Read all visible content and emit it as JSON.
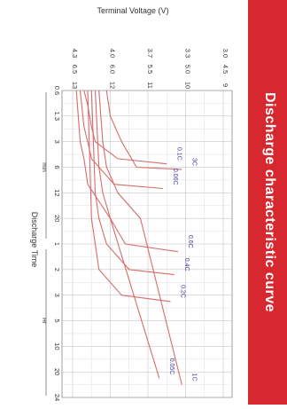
{
  "banner": {
    "title": "Discharge characteristic curve",
    "color": "#d8282f",
    "text_color": "#ffffff"
  },
  "chart_data": {
    "type": "line",
    "orientation": "rotated-90-clockwise",
    "xlabel": "Discharge Time",
    "ylabel": "Terminal Voltage (V)",
    "x_unit_groups": [
      "min",
      "Hr"
    ],
    "x_ticks": [
      "0.6",
      "1.3",
      "3",
      "6",
      "12",
      "20",
      "1",
      "2",
      "3",
      "5",
      "10",
      "20",
      "24"
    ],
    "y_scales": [
      [
        "9",
        "10",
        "11",
        "12",
        "13"
      ],
      [
        "4.5",
        "5.0",
        "5.5",
        "6.0",
        "6.5"
      ],
      [
        "3.0",
        "3.3",
        "3.7",
        "4.0",
        "4.3"
      ]
    ],
    "ylim": [
      9,
      13
    ],
    "grid": true,
    "curve_color": "#d76b6b",
    "label_color": "#3d3d9e",
    "series": [
      {
        "name": "3C",
        "x": [
          0.6,
          1.3,
          3,
          6,
          6.5
        ],
        "y": [
          12.1,
          12.0,
          11.7,
          11.3,
          10.1
        ]
      },
      {
        "name": "1C",
        "x": [
          0.6,
          3,
          6,
          12,
          20,
          22
        ],
        "y": [
          12.3,
          12.2,
          12.1,
          11.8,
          11.2,
          10.1
        ]
      },
      {
        "name": "0.6C",
        "x": [
          0.6,
          6,
          12,
          20,
          1,
          1.3
        ],
        "y": [
          12.4,
          12.3,
          12.2,
          12.0,
          11.6,
          10.2
        ]
      },
      {
        "name": "0.4C",
        "x": [
          0.6,
          12,
          20,
          1,
          2,
          2.2
        ],
        "y": [
          12.5,
          12.4,
          12.3,
          12.1,
          11.5,
          10.3
        ]
      },
      {
        "name": "0.2C",
        "x": [
          0.6,
          20,
          1,
          2,
          3,
          3.5
        ],
        "y": [
          12.6,
          12.5,
          12.4,
          12.3,
          11.7,
          10.4
        ]
      },
      {
        "name": "0.1C",
        "x": [
          0.6,
          1,
          2,
          3,
          5,
          5.6
        ],
        "y": [
          12.7,
          12.6,
          12.5,
          12.4,
          11.8,
          10.5
        ]
      },
      {
        "name": "0.06C",
        "x": [
          0.6,
          2,
          3,
          5,
          10,
          11
        ],
        "y": [
          12.8,
          12.7,
          12.6,
          12.5,
          11.9,
          10.6
        ]
      },
      {
        "name": "0.05C",
        "x": [
          0.6,
          3,
          5,
          10,
          20,
          21
        ],
        "y": [
          12.9,
          12.8,
          12.7,
          12.6,
          12.0,
          10.7
        ]
      }
    ]
  }
}
